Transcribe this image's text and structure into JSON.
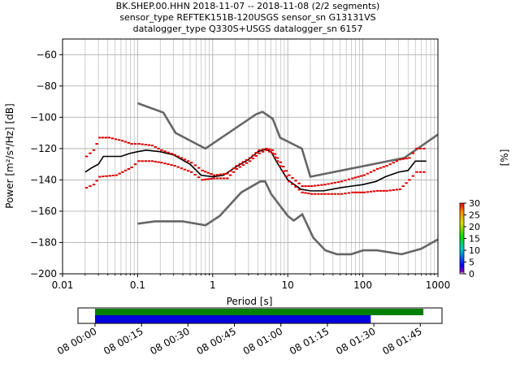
{
  "title_lines": [
    "BK.SHEP.00.HHN   2018-11-07 -- 2018-11-08  (2/2 segments)",
    "sensor_type REFTEK151B-120USGS sensor_sn G13131VS",
    "datalogger_type Q330S+USGS datalogger_sn 6157"
  ],
  "colors": {
    "model_curves": "#666666",
    "mean_curve": "#000000",
    "percentile_marks": "#dd0000",
    "grid": "#b0b0b0",
    "coverage_data": "#008000",
    "coverage_psd": "#0000dd"
  },
  "chart_data": [
    {
      "type": "line",
      "x_scale": "log",
      "xlabel": "Period [s]",
      "ylabel": "Power [m²/s⁴/Hz] [dB]",
      "xlim": [
        0.01,
        1000
      ],
      "ylim": [
        -200,
        -50
      ],
      "xticks": [
        "0.01",
        "0.1",
        "1",
        "10",
        "100",
        "1000"
      ],
      "yticks": [
        "−200",
        "−180",
        "−160",
        "−140",
        "−120",
        "−100",
        "−80",
        "−60"
      ],
      "grid": true,
      "series": [
        {
          "role": "model-high",
          "x": [
            0.1,
            0.22,
            0.32,
            0.8,
            3.8,
            4.6,
            6.3,
            7.9,
            15.4,
            20,
            354.8,
            1000
          ],
          "y": [
            -91,
            -97,
            -110,
            -120,
            -98,
            -96.5,
            -101,
            -113,
            -120,
            -138,
            -126,
            -111
          ]
        },
        {
          "role": "model-low",
          "x": [
            0.1,
            0.17,
            0.4,
            0.8,
            1.24,
            2.4,
            4.3,
            5.0,
            6.0,
            10,
            12,
            15.6,
            21.9,
            31.6,
            45,
            70,
            101,
            154,
            328,
            600,
            1000
          ],
          "y": [
            -168,
            -166.5,
            -166.5,
            -169,
            -163,
            -148,
            -141,
            -141,
            -149,
            -163,
            -166,
            -162,
            -177,
            -185,
            -187.5,
            -187.5,
            -185,
            -185,
            -187.5,
            -184,
            -178
          ]
        },
        {
          "role": "mean",
          "x": [
            0.02,
            0.025,
            0.03,
            0.035,
            0.06,
            0.08,
            0.1,
            0.13,
            0.2,
            0.3,
            0.5,
            0.7,
            1.0,
            1.4,
            2.0,
            3.0,
            4.0,
            5.0,
            6.0,
            7.0,
            10,
            15,
            20,
            30,
            50,
            70,
            100,
            150,
            200,
            300,
            400,
            500,
            700
          ],
          "y": [
            -135,
            -132,
            -130,
            -125,
            -125,
            -123,
            -122,
            -121,
            -122,
            -124,
            -130,
            -137,
            -138,
            -137,
            -132,
            -127,
            -122,
            -120.5,
            -122,
            -128,
            -140,
            -146,
            -147,
            -147,
            -145,
            -144,
            -143,
            -141,
            -138,
            -135,
            -134,
            -128,
            -128
          ]
        },
        {
          "role": "percentile-upper",
          "x": [
            0.02,
            0.025,
            0.03,
            0.04,
            0.06,
            0.08,
            0.1,
            0.15,
            0.2,
            0.3,
            0.5,
            0.7,
            1.0,
            1.5,
            2.0,
            3.0,
            4.0,
            5.0,
            6.0,
            7.0,
            10,
            15,
            20,
            30,
            50,
            70,
            100,
            150,
            200,
            300,
            400,
            500,
            700
          ],
          "y": [
            -125,
            -121,
            -113,
            -113,
            -115,
            -117,
            -117,
            -118,
            -121,
            -124,
            -129,
            -134,
            -137,
            -136,
            -131,
            -126,
            -121,
            -120,
            -121,
            -126,
            -137,
            -144,
            -144,
            -143,
            -141,
            -139,
            -137,
            -133,
            -131,
            -127,
            -126,
            -120,
            -120
          ]
        },
        {
          "role": "percentile-lower",
          "x": [
            0.02,
            0.025,
            0.03,
            0.05,
            0.08,
            0.1,
            0.15,
            0.2,
            0.3,
            0.5,
            0.7,
            1.0,
            1.5,
            2.0,
            3.0,
            4.0,
            5.0,
            6.0,
            7.0,
            10,
            15,
            20,
            30,
            50,
            70,
            100,
            150,
            200,
            300,
            400,
            500,
            700
          ],
          "y": [
            -145,
            -143,
            -138,
            -137,
            -132,
            -128,
            -128,
            -129,
            -131,
            -135,
            -140,
            -139,
            -139,
            -133,
            -128,
            -123,
            -121,
            -123,
            -128,
            -141,
            -148,
            -149,
            -149,
            -149,
            -148,
            -148,
            -147,
            -147,
            -146,
            -140,
            -135,
            -135
          ]
        }
      ]
    },
    {
      "type": "colorbar",
      "label": "[%]",
      "range": [
        0,
        30
      ],
      "ticks": [
        "0",
        "5",
        "10",
        "15",
        "20",
        "25",
        "30"
      ]
    },
    {
      "type": "timeline",
      "xticks": [
        "08 00:00",
        "08 00:15",
        "08 00:30",
        "08 00:45",
        "08 01:00",
        "08 01:15",
        "08 01:30",
        "08 01:45"
      ],
      "x_range_minutes": [
        -5.5,
        112
      ],
      "bars": [
        {
          "role": "data-coverage",
          "start_minute": 0,
          "end_minute": 106
        },
        {
          "role": "psd-coverage",
          "start_minute": 0,
          "end_minute": 89
        }
      ]
    }
  ]
}
